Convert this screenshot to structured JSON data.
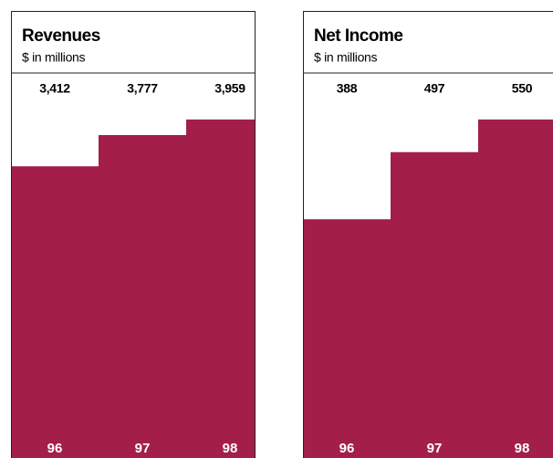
{
  "chart_data": [
    {
      "type": "bar",
      "title": "Revenues",
      "subtitle": "$ in millions",
      "categories": [
        "96",
        "97",
        "98"
      ],
      "values": [
        3412,
        3777,
        3959
      ],
      "value_labels": [
        "3,412",
        "3,777",
        "3,959"
      ],
      "color": "#a31f4a"
    },
    {
      "type": "bar",
      "title": "Net Income",
      "subtitle": "$ in millions",
      "categories": [
        "96",
        "97",
        "98"
      ],
      "values": [
        388,
        497,
        550
      ],
      "color": "#a31f4a"
    }
  ]
}
